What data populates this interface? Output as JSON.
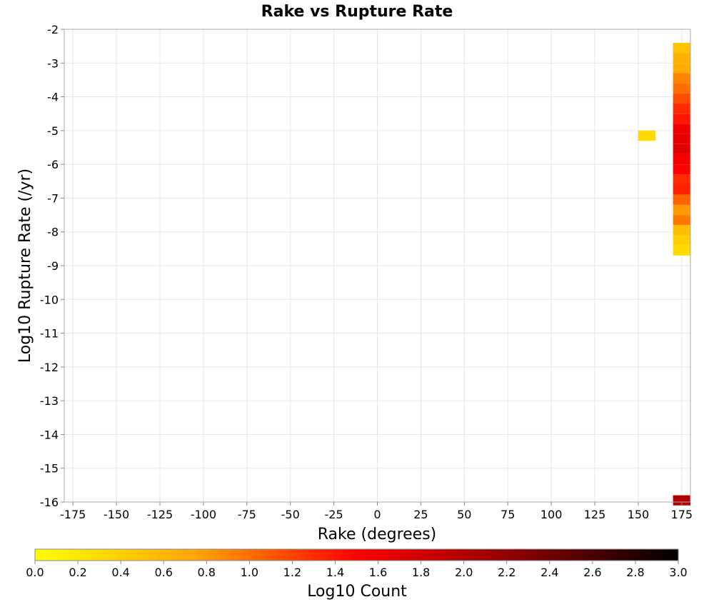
{
  "chart_data": {
    "type": "heatmap",
    "title": "Rake vs Rupture Rate",
    "xlabel": "Rake (degrees)",
    "ylabel": "Log10 Rupture Rate (/yr)",
    "xlim": [
      -180,
      180
    ],
    "ylim": [
      -16,
      -2
    ],
    "x_ticks": [
      -175,
      -150,
      -125,
      -100,
      -75,
      -50,
      -25,
      0,
      25,
      50,
      75,
      100,
      125,
      150,
      175
    ],
    "y_ticks": [
      -2,
      -3,
      -4,
      -5,
      -6,
      -7,
      -8,
      -9,
      -10,
      -11,
      -12,
      -13,
      -14,
      -15,
      -16
    ],
    "grid": true,
    "bin_width_x": 10,
    "bin_height_y": 0.3,
    "colorbar": {
      "label": "Log10 Count",
      "range": [
        0,
        3
      ],
      "ticks": [
        "0.0",
        "0.2",
        "0.4",
        "0.6",
        "0.8",
        "1.0",
        "1.2",
        "1.4",
        "1.6",
        "1.8",
        "2.0",
        "2.2",
        "2.4",
        "2.6",
        "2.8",
        "3.0"
      ],
      "placement": "bottom",
      "colors": [
        "#ffff00",
        "#ffa500",
        "#ff0000",
        "#8b0000",
        "#000000"
      ]
    },
    "cells": [
      {
        "x": 155,
        "y": -5.15,
        "value": 0.3
      },
      {
        "x": 175,
        "y": -2.55,
        "value": 0.5
      },
      {
        "x": 175,
        "y": -2.85,
        "value": 0.65
      },
      {
        "x": 175,
        "y": -3.15,
        "value": 0.7
      },
      {
        "x": 175,
        "y": -3.45,
        "value": 0.9
      },
      {
        "x": 175,
        "y": -3.75,
        "value": 1.0
      },
      {
        "x": 175,
        "y": -4.05,
        "value": 1.15
      },
      {
        "x": 175,
        "y": -4.35,
        "value": 1.3
      },
      {
        "x": 175,
        "y": -4.65,
        "value": 1.4
      },
      {
        "x": 175,
        "y": -4.95,
        "value": 1.6
      },
      {
        "x": 175,
        "y": -5.25,
        "value": 1.65
      },
      {
        "x": 175,
        "y": -5.55,
        "value": 1.7
      },
      {
        "x": 175,
        "y": -5.85,
        "value": 1.55
      },
      {
        "x": 175,
        "y": -6.15,
        "value": 1.5
      },
      {
        "x": 175,
        "y": -6.45,
        "value": 1.3
      },
      {
        "x": 175,
        "y": -6.75,
        "value": 1.35
      },
      {
        "x": 175,
        "y": -7.05,
        "value": 1.05
      },
      {
        "x": 175,
        "y": -7.35,
        "value": 0.8
      },
      {
        "x": 175,
        "y": -7.65,
        "value": 0.95
      },
      {
        "x": 175,
        "y": -7.95,
        "value": 0.55
      },
      {
        "x": 175,
        "y": -8.25,
        "value": 0.4
      },
      {
        "x": 175,
        "y": -8.55,
        "value": 0.3
      },
      {
        "x": 175,
        "y": -15.95,
        "value": 2.0
      }
    ]
  }
}
